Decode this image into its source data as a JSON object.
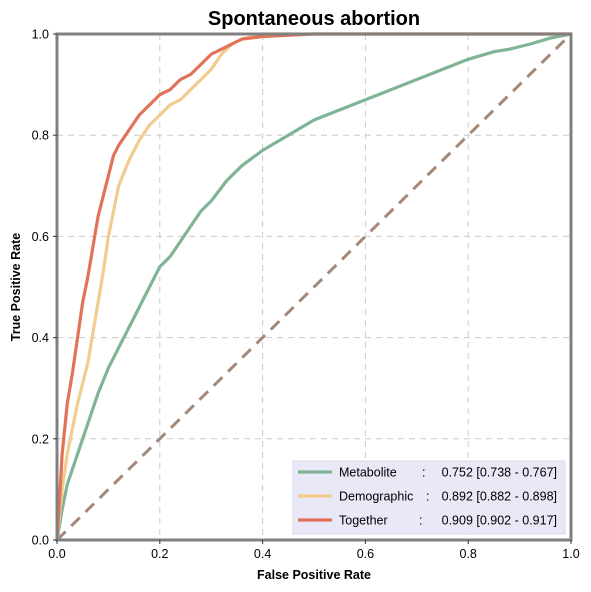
{
  "chart_data": {
    "type": "line",
    "title": "Spontaneous abortion",
    "xlabel": "False Positive Rate",
    "ylabel": "True Positive Rate",
    "xlim": [
      0,
      1
    ],
    "ylim": [
      0,
      1
    ],
    "xticks": [
      "0.0",
      "0.2",
      "0.4",
      "0.6",
      "0.8",
      "1.0"
    ],
    "yticks": [
      "0.0",
      "0.2",
      "0.4",
      "0.6",
      "0.8",
      "1.0"
    ],
    "grid": true,
    "legend_position": "lower-right",
    "series": [
      {
        "label_name": "Metabolite",
        "label_sep": ":",
        "label_value": "0.752 [0.738 - 0.767]",
        "color": "#7fb596",
        "x": [
          0,
          0.01,
          0.02,
          0.04,
          0.06,
          0.08,
          0.1,
          0.12,
          0.14,
          0.16,
          0.18,
          0.2,
          0.22,
          0.24,
          0.26,
          0.28,
          0.3,
          0.33,
          0.36,
          0.4,
          0.45,
          0.5,
          0.55,
          0.6,
          0.65,
          0.7,
          0.75,
          0.8,
          0.85,
          0.88,
          0.92,
          0.96,
          1.0
        ],
        "y": [
          0,
          0.06,
          0.11,
          0.17,
          0.23,
          0.29,
          0.34,
          0.38,
          0.42,
          0.46,
          0.5,
          0.54,
          0.56,
          0.59,
          0.62,
          0.65,
          0.67,
          0.71,
          0.74,
          0.77,
          0.8,
          0.83,
          0.85,
          0.87,
          0.89,
          0.91,
          0.93,
          0.95,
          0.965,
          0.97,
          0.98,
          0.992,
          1.0
        ]
      },
      {
        "label_name": "Demographic",
        "label_sep": ":",
        "label_value": "0.892 [0.882 - 0.898]",
        "color": "#f2cb8f",
        "x": [
          0,
          0.005,
          0.01,
          0.02,
          0.03,
          0.04,
          0.05,
          0.06,
          0.07,
          0.08,
          0.09,
          0.1,
          0.11,
          0.12,
          0.14,
          0.16,
          0.18,
          0.2,
          0.22,
          0.24,
          0.26,
          0.28,
          0.3,
          0.32,
          0.34,
          0.36,
          0.38,
          0.4,
          0.45,
          0.55,
          0.7,
          0.85,
          1.0
        ],
        "y": [
          0,
          0.05,
          0.1,
          0.17,
          0.22,
          0.27,
          0.31,
          0.35,
          0.41,
          0.47,
          0.53,
          0.6,
          0.65,
          0.7,
          0.75,
          0.79,
          0.82,
          0.84,
          0.86,
          0.87,
          0.89,
          0.91,
          0.93,
          0.96,
          0.98,
          0.99,
          0.995,
          1.0,
          1.0,
          1.0,
          1.0,
          1.0,
          1.0
        ]
      },
      {
        "label_name": "Together",
        "label_sep": ":",
        "label_value": "0.909 [0.902 - 0.917]",
        "color": "#e0735a",
        "x": [
          0,
          0.005,
          0.01,
          0.015,
          0.02,
          0.03,
          0.04,
          0.05,
          0.06,
          0.07,
          0.08,
          0.09,
          0.1,
          0.11,
          0.12,
          0.14,
          0.16,
          0.18,
          0.2,
          0.22,
          0.24,
          0.26,
          0.28,
          0.3,
          0.32,
          0.34,
          0.36,
          0.4,
          0.5,
          0.6,
          0.8,
          1.0
        ],
        "y": [
          0,
          0.08,
          0.17,
          0.22,
          0.27,
          0.33,
          0.4,
          0.47,
          0.52,
          0.58,
          0.64,
          0.68,
          0.72,
          0.76,
          0.78,
          0.81,
          0.84,
          0.86,
          0.88,
          0.89,
          0.91,
          0.92,
          0.94,
          0.96,
          0.97,
          0.98,
          0.99,
          0.995,
          1.0,
          1.0,
          1.0,
          1.0
        ]
      }
    ],
    "reference_line": {
      "x": [
        0,
        1
      ],
      "y": [
        0,
        1
      ],
      "color": "#a48878",
      "style": "dashed"
    }
  }
}
